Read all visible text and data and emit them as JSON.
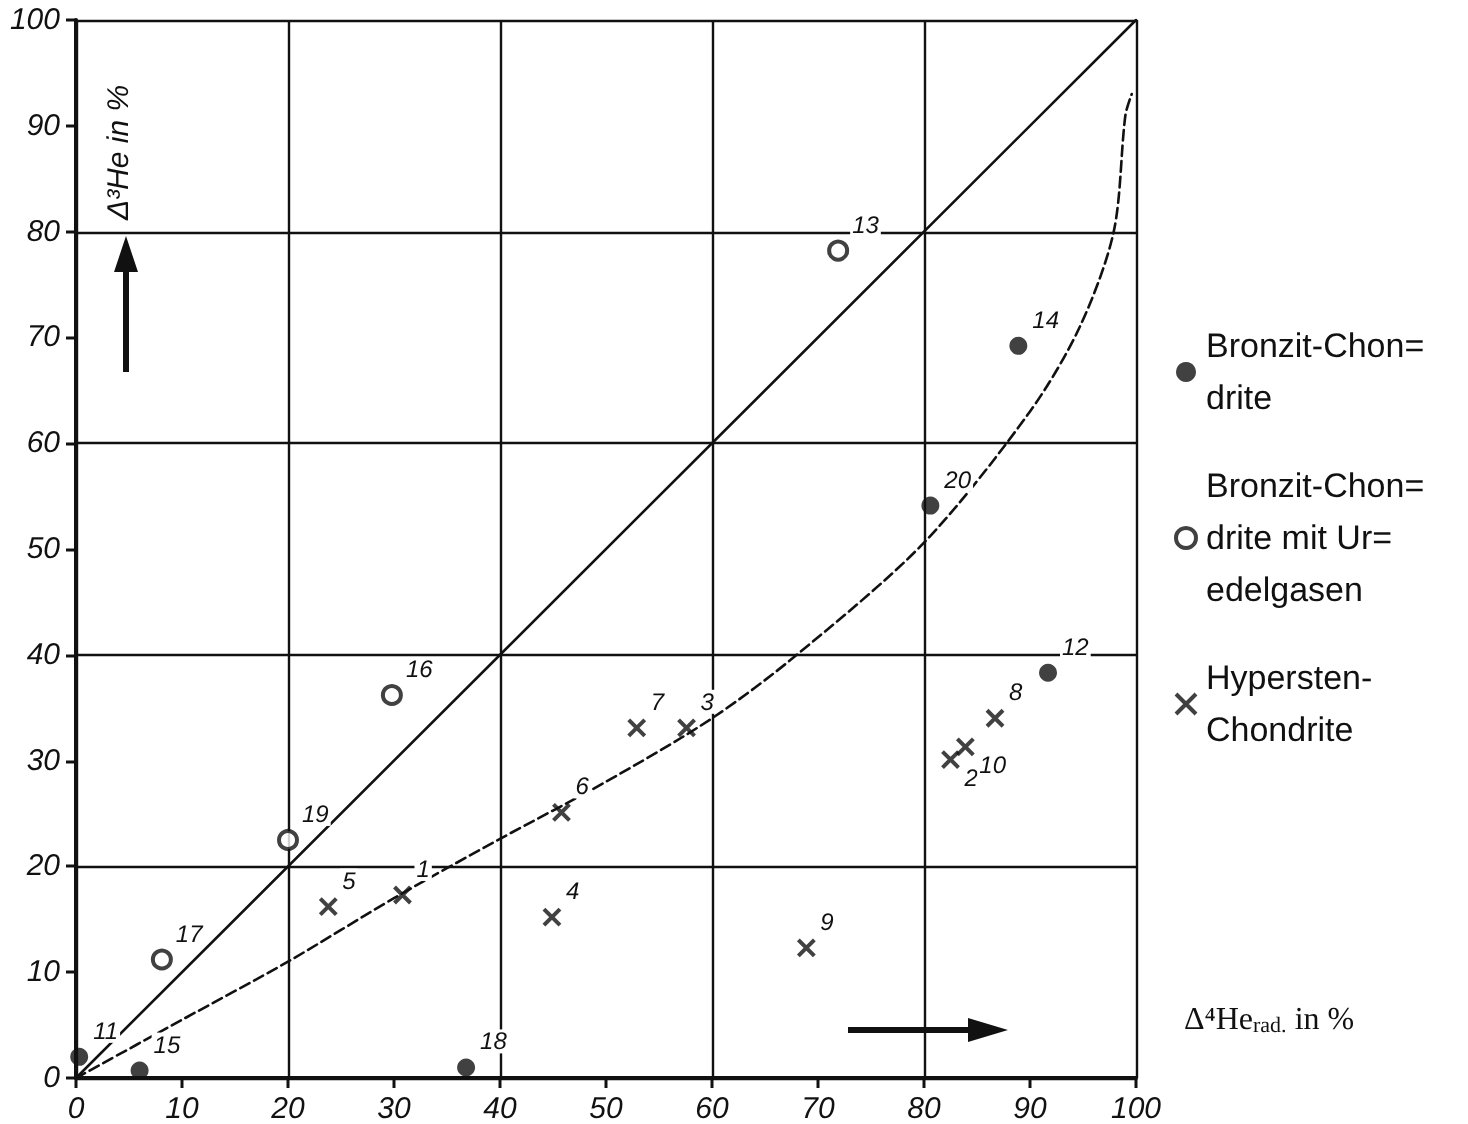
{
  "chart_data": {
    "type": "scatter",
    "xlabel": "Δ⁴He$_{rad.}$ in %",
    "ylabel": "Δ³He in %",
    "xlim": [
      0,
      100
    ],
    "ylim": [
      0,
      100
    ],
    "xticks": [
      0,
      10,
      20,
      30,
      40,
      50,
      60,
      70,
      80,
      90,
      100
    ],
    "yticks": [
      0,
      10,
      20,
      30,
      40,
      50,
      60,
      70,
      80,
      90,
      100
    ],
    "grid": true,
    "legend": "right",
    "series": [
      {
        "name": "Bronzit-Chon=\ndrite",
        "marker": "circle",
        "color": "#111111",
        "x": [
          0.3,
          6,
          36.8,
          88.9,
          80.6,
          91.7
        ],
        "values": [
          2,
          0.7,
          1,
          69.2,
          54.1,
          38.3
        ]
      },
      {
        "name": "Bronzit-Chon=\ndrite mit Ur=\nedelgasen",
        "marker": "circle_open",
        "color": "#111111",
        "x": [
          71.9,
          29.8,
          20,
          8.1
        ],
        "values": [
          78.2,
          36.2,
          22.5,
          11.2
        ]
      },
      {
        "name": "Hypersten-\nChondrite",
        "marker": "cross",
        "color": "#111111",
        "x": [
          23.8,
          30.8,
          44.9,
          45.8,
          52.9,
          57.6,
          68.9,
          82.5,
          83.9,
          86.7
        ],
        "values": [
          16.2,
          17.3,
          15.2,
          25.1,
          33.1,
          33.1,
          12.3,
          30.1,
          31.3,
          34
        ]
      },
      {
        "type": "line",
        "marker": "none",
        "line_style": "solid",
        "color": "#111111",
        "x": [
          0,
          100
        ],
        "values": [
          0,
          100
        ]
      },
      {
        "type": "line",
        "marker": "none",
        "line_style": "dashed",
        "color": "#111111",
        "x": [
          0,
          10,
          20,
          30,
          40,
          50,
          60,
          68,
          80,
          90,
          94.7,
          97.9,
          99,
          99.6
        ],
        "values": [
          0,
          5.5,
          11,
          17,
          22.6,
          28,
          34,
          40,
          50.6,
          63,
          71,
          80,
          91,
          93
        ]
      }
    ],
    "annotations": [
      {
        "text": "11",
        "x": 0.3,
        "y": 2
      },
      {
        "text": "15",
        "x": 6,
        "y": 0.7
      },
      {
        "text": "18",
        "x": 36.8,
        "y": 1
      },
      {
        "text": "14",
        "x": 88.9,
        "y": 69.2
      },
      {
        "text": "20",
        "x": 80.6,
        "y": 54.1
      },
      {
        "text": "12",
        "x": 91.7,
        "y": 38.3
      },
      {
        "text": "13",
        "x": 71.9,
        "y": 78.2
      },
      {
        "text": "16",
        "x": 29.8,
        "y": 36.2
      },
      {
        "text": "19",
        "x": 20,
        "y": 22.5
      },
      {
        "text": "17",
        "x": 8.1,
        "y": 11.2
      },
      {
        "text": "5",
        "x": 23.8,
        "y": 16.2
      },
      {
        "text": "1",
        "x": 30.8,
        "y": 17.3
      },
      {
        "text": "4",
        "x": 44.9,
        "y": 15.2
      },
      {
        "text": "6",
        "x": 45.8,
        "y": 25.1
      },
      {
        "text": "7",
        "x": 52.9,
        "y": 33.1
      },
      {
        "text": "3",
        "x": 57.6,
        "y": 33.1
      },
      {
        "text": "9",
        "x": 68.9,
        "y": 12.3
      },
      {
        "text": "2",
        "x": 82.5,
        "y": 30.1
      },
      {
        "text": "10",
        "x": 83.9,
        "y": 31.3
      },
      {
        "text": "8",
        "x": 86.7,
        "y": 34
      }
    ]
  }
}
